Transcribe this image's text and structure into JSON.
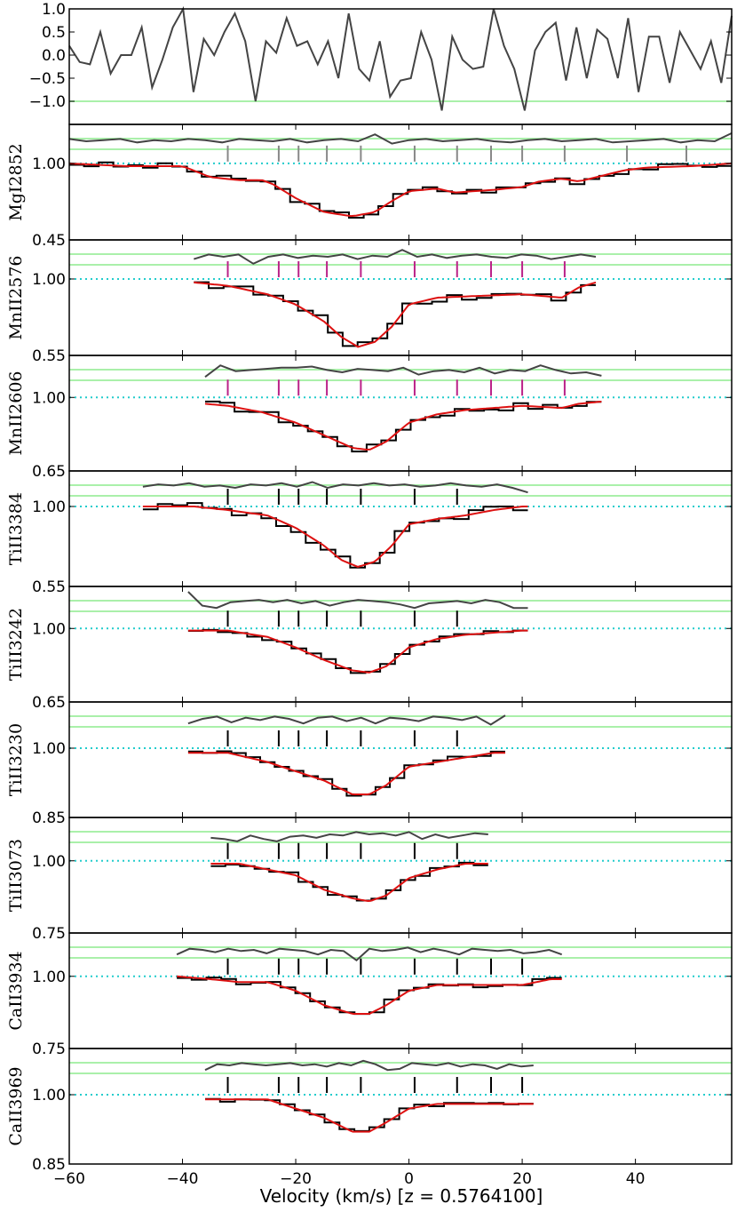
{
  "chart_data": {
    "type": "line",
    "xlabel": "Velocity (km/s) [z = 0.5764100]",
    "xlim": [
      -60,
      57
    ],
    "xticks": [
      -60,
      -40,
      -20,
      0,
      20,
      40
    ],
    "xtick_labels": [
      "−60",
      "−40",
      "−20",
      "0",
      "20",
      "40"
    ],
    "colors": {
      "data": "#000000",
      "model": "#dd1111",
      "residual": "#444444",
      "residual_band": "#aaf0aa",
      "continuum": "#22cccc",
      "tick_gray": "#888888",
      "tick_magenta": "#bb2288",
      "tick_black": "#000000"
    },
    "residual_panel": {
      "yticks": [
        1.0,
        0.5,
        0.0,
        -0.5,
        -1.0,
        -1.5
      ],
      "ytick_labels": [
        "1.0",
        "0.5",
        "0.0",
        "−0.5",
        "−1.0",
        ""
      ],
      "ylim": [
        -1.5,
        1.0
      ],
      "band": -1.0,
      "values": [
        0.2,
        -0.15,
        -0.2,
        0.5,
        -0.4,
        0.0,
        0.0,
        0.6,
        -0.7,
        -0.1,
        0.6,
        1.0,
        -0.8,
        0.35,
        0.0,
        0.5,
        0.9,
        0.3,
        -1.0,
        0.3,
        0.05,
        0.8,
        0.2,
        0.3,
        -0.2,
        0.3,
        -0.5,
        0.9,
        -0.3,
        -0.55,
        0.3,
        -0.9,
        -0.55,
        -0.5,
        0.5,
        -0.1,
        -1.2,
        0.4,
        -0.1,
        -0.3,
        -0.25,
        1.0,
        0.2,
        -0.3,
        -1.2,
        0.1,
        0.5,
        0.7,
        -0.55,
        0.6,
        -0.5,
        0.55,
        0.35,
        -0.5,
        0.8,
        -0.8,
        0.4,
        0.4,
        -0.6,
        0.5,
        0.1,
        -0.3,
        0.3,
        -0.6,
        0.85
      ]
    },
    "components": [
      -32,
      -23,
      -19.5,
      -14.5,
      -8.5,
      1,
      8.5,
      14.5,
      20,
      27.5,
      38.5,
      49
    ],
    "panels": [
      {
        "name": "MgI2852",
        "ymin_label": "0.45",
        "ylim": [
          0.45,
          1.28
        ],
        "xr": [
          -60,
          57
        ],
        "depth": 0.38,
        "ticks": "gray",
        "ncomp": 12,
        "profile": [
          [
            -60,
            1.0
          ],
          [
            -50,
            0.98
          ],
          [
            -40,
            0.98
          ],
          [
            -35,
            0.9
          ],
          [
            -30,
            0.88
          ],
          [
            -26,
            0.88
          ],
          [
            -24,
            0.85
          ],
          [
            -20,
            0.75
          ],
          [
            -15,
            0.65
          ],
          [
            -10,
            0.62
          ],
          [
            -6,
            0.65
          ],
          [
            -3,
            0.73
          ],
          [
            0,
            0.8
          ],
          [
            5,
            0.82
          ],
          [
            8,
            0.79
          ],
          [
            15,
            0.81
          ],
          [
            20,
            0.83
          ],
          [
            23,
            0.87
          ],
          [
            27,
            0.89
          ],
          [
            30,
            0.87
          ],
          [
            34,
            0.91
          ],
          [
            38,
            0.95
          ],
          [
            42,
            0.97
          ],
          [
            50,
            0.98
          ],
          [
            57,
            1.0
          ]
        ],
        "residual": [
          0.6,
          0.5,
          0.55,
          0.6,
          0.45,
          0.55,
          0.5,
          0.6,
          0.55,
          0.45,
          0.6,
          0.55,
          0.5,
          0.6,
          0.45,
          0.55,
          0.6,
          0.5,
          0.8,
          0.4,
          0.55,
          0.6,
          0.5,
          0.55,
          0.6,
          0.5,
          0.45,
          0.55,
          0.6,
          0.5,
          0.55,
          0.6,
          0.45,
          0.5,
          0.55,
          0.6,
          0.45,
          0.55,
          0.5,
          0.85
        ]
      },
      {
        "name": "MnII2576",
        "ymin_label": "0.55",
        "ylim": [
          0.55,
          1.23
        ],
        "xr": [
          -38,
          33
        ],
        "depth": 0.4,
        "ticks": "magenta",
        "ncomp": 10,
        "profile": [
          [
            -38,
            0.98
          ],
          [
            -32,
            0.96
          ],
          [
            -25,
            0.91
          ],
          [
            -20,
            0.85
          ],
          [
            -15,
            0.75
          ],
          [
            -12,
            0.66
          ],
          [
            -9,
            0.6
          ],
          [
            -6,
            0.63
          ],
          [
            -3,
            0.72
          ],
          [
            0,
            0.85
          ],
          [
            5,
            0.89
          ],
          [
            12,
            0.9
          ],
          [
            20,
            0.91
          ],
          [
            27,
            0.89
          ],
          [
            30,
            0.95
          ],
          [
            33,
            0.98
          ]
        ],
        "residual": [
          0.4,
          0.6,
          0.5,
          0.6,
          0.2,
          0.5,
          0.6,
          0.45,
          0.55,
          0.5,
          0.6,
          0.4,
          0.55,
          0.5,
          0.8,
          0.5,
          0.6,
          0.45,
          0.55,
          0.6,
          0.5,
          0.45,
          0.6,
          0.55,
          0.4,
          0.5,
          0.6,
          0.5
        ]
      },
      {
        "name": "MnII2606",
        "ymin_label": "0.65",
        "ylim": [
          0.65,
          1.2
        ],
        "xr": [
          -36,
          34
        ],
        "depth": 0.29,
        "ticks": "magenta",
        "ncomp": 10,
        "profile": [
          [
            -36,
            0.97
          ],
          [
            -32,
            0.96
          ],
          [
            -26,
            0.93
          ],
          [
            -20,
            0.88
          ],
          [
            -15,
            0.82
          ],
          [
            -10,
            0.76
          ],
          [
            -7,
            0.75
          ],
          [
            -4,
            0.79
          ],
          [
            0,
            0.88
          ],
          [
            5,
            0.92
          ],
          [
            10,
            0.94
          ],
          [
            15,
            0.95
          ],
          [
            20,
            0.96
          ],
          [
            27,
            0.95
          ],
          [
            30,
            0.97
          ],
          [
            34,
            0.98
          ]
        ],
        "residual": [
          0.3,
          0.8,
          0.55,
          0.6,
          0.65,
          0.7,
          0.7,
          0.75,
          0.6,
          0.5,
          0.65,
          0.6,
          0.55,
          0.7,
          0.4,
          0.55,
          0.6,
          0.5,
          0.7,
          0.45,
          0.6,
          0.55,
          0.8,
          0.6,
          0.45,
          0.5,
          0.35
        ]
      },
      {
        "name": "TiII3384",
        "ymin_label": "0.55",
        "ylim": [
          0.55,
          1.2
        ],
        "xr": [
          -47,
          21
        ],
        "depth": 0.42,
        "ticks": "black",
        "ncomp": 7,
        "profile": [
          [
            -47,
            1.0
          ],
          [
            -38,
            1.0
          ],
          [
            -32,
            0.98
          ],
          [
            -25,
            0.95
          ],
          [
            -20,
            0.88
          ],
          [
            -15,
            0.78
          ],
          [
            -12,
            0.7
          ],
          [
            -9,
            0.66
          ],
          [
            -6,
            0.69
          ],
          [
            -3,
            0.78
          ],
          [
            0,
            0.9
          ],
          [
            5,
            0.93
          ],
          [
            10,
            0.95
          ],
          [
            15,
            0.98
          ],
          [
            20,
            1.0
          ],
          [
            21,
            1.0
          ]
        ],
        "residual": [
          0.55,
          0.65,
          0.6,
          0.7,
          0.55,
          0.6,
          0.5,
          0.65,
          0.6,
          0.7,
          0.55,
          0.75,
          0.5,
          0.65,
          0.6,
          0.7,
          0.6,
          0.65,
          0.55,
          0.6,
          0.7,
          0.6,
          0.55,
          0.65,
          0.5,
          0.3
        ]
      },
      {
        "name": "TiII3242",
        "ymin_label": "0.65",
        "ylim": [
          0.65,
          1.2
        ],
        "xr": [
          -39,
          21
        ],
        "depth": 0.21,
        "ticks": "black",
        "ncomp": 7,
        "profile": [
          [
            -39,
            0.99
          ],
          [
            -32,
            0.99
          ],
          [
            -25,
            0.96
          ],
          [
            -20,
            0.91
          ],
          [
            -15,
            0.85
          ],
          [
            -10,
            0.8
          ],
          [
            -7,
            0.79
          ],
          [
            -4,
            0.82
          ],
          [
            0,
            0.91
          ],
          [
            5,
            0.95
          ],
          [
            10,
            0.97
          ],
          [
            15,
            0.98
          ],
          [
            20,
            0.99
          ],
          [
            21,
            0.99
          ]
        ],
        "residual": [
          1.0,
          0.4,
          0.3,
          0.55,
          0.6,
          0.65,
          0.55,
          0.65,
          0.5,
          0.6,
          0.4,
          0.55,
          0.65,
          0.6,
          0.55,
          0.45,
          0.3,
          0.5,
          0.55,
          0.6,
          0.5,
          0.65,
          0.55,
          0.3,
          0.3
        ]
      },
      {
        "name": "TiII3230",
        "ymin_label": "0.85",
        "ylim": [
          0.85,
          1.1
        ],
        "xr": [
          -39,
          17
        ],
        "depth": 0.1,
        "ticks": "black",
        "ncomp": 7,
        "profile": [
          [
            -39,
            0.99
          ],
          [
            -32,
            0.99
          ],
          [
            -25,
            0.97
          ],
          [
            -20,
            0.95
          ],
          [
            -15,
            0.93
          ],
          [
            -10,
            0.9
          ],
          [
            -7,
            0.9
          ],
          [
            -4,
            0.92
          ],
          [
            0,
            0.96
          ],
          [
            5,
            0.97
          ],
          [
            10,
            0.98
          ],
          [
            15,
            0.99
          ],
          [
            17,
            0.99
          ]
        ],
        "residual": [
          0.3,
          0.5,
          0.6,
          0.35,
          0.55,
          0.45,
          0.6,
          0.5,
          0.3,
          0.55,
          0.6,
          0.4,
          0.55,
          0.3,
          0.55,
          0.5,
          0.4,
          0.6,
          0.55,
          0.45,
          0.6,
          0.25,
          0.65
        ]
      },
      {
        "name": "TiII3073",
        "ymin_label": "0.75",
        "ylim": [
          0.75,
          1.15
        ],
        "xr": [
          -35,
          14
        ],
        "depth": 0.14,
        "ticks": "black",
        "ncomp": 7,
        "profile": [
          [
            -35,
            0.99
          ],
          [
            -30,
            0.99
          ],
          [
            -25,
            0.97
          ],
          [
            -20,
            0.95
          ],
          [
            -15,
            0.9
          ],
          [
            -10,
            0.87
          ],
          [
            -7,
            0.86
          ],
          [
            -4,
            0.88
          ],
          [
            0,
            0.94
          ],
          [
            5,
            0.97
          ],
          [
            10,
            0.99
          ],
          [
            14,
            0.99
          ]
        ],
        "residual": [
          0.35,
          0.3,
          0.2,
          0.45,
          0.3,
          0.2,
          0.4,
          0.45,
          0.35,
          0.5,
          0.45,
          0.6,
          0.5,
          0.55,
          0.45,
          0.6,
          0.3,
          0.5,
          0.35,
          0.45,
          0.55,
          0.5
        ]
      },
      {
        "name": "CaII3934",
        "ymin_label": "0.75",
        "ylim": [
          0.75,
          1.15
        ],
        "xr": [
          -41,
          27
        ],
        "depth": 0.14,
        "ticks": "black",
        "ncomp": 9,
        "profile": [
          [
            -41,
            1.0
          ],
          [
            -35,
            0.99
          ],
          [
            -30,
            0.98
          ],
          [
            -25,
            0.98
          ],
          [
            -20,
            0.95
          ],
          [
            -15,
            0.9
          ],
          [
            -10,
            0.87
          ],
          [
            -7,
            0.87
          ],
          [
            -4,
            0.9
          ],
          [
            0,
            0.95
          ],
          [
            5,
            0.97
          ],
          [
            10,
            0.97
          ],
          [
            15,
            0.97
          ],
          [
            20,
            0.97
          ],
          [
            25,
            0.99
          ],
          [
            27,
            0.99
          ]
        ],
        "residual": [
          0.3,
          0.55,
          0.5,
          0.4,
          0.55,
          0.45,
          0.5,
          0.35,
          0.55,
          0.5,
          0.45,
          0.3,
          0.5,
          0.45,
          0.05,
          0.55,
          0.45,
          0.5,
          0.6,
          0.4,
          0.55,
          0.45,
          0.3,
          0.55,
          0.5,
          0.45,
          0.5,
          0.35,
          0.4,
          0.5,
          0.3
        ]
      },
      {
        "name": "CaII3969",
        "ymin_label": "0.85",
        "ylim": [
          0.85,
          1.1
        ],
        "xr": [
          -36,
          22
        ],
        "depth": 0.09,
        "ticks": "black",
        "ncomp": 9,
        "profile": [
          [
            -36,
            0.99
          ],
          [
            -30,
            0.99
          ],
          [
            -25,
            0.99
          ],
          [
            -20,
            0.97
          ],
          [
            -15,
            0.95
          ],
          [
            -10,
            0.92
          ],
          [
            -7,
            0.92
          ],
          [
            -4,
            0.94
          ],
          [
            0,
            0.97
          ],
          [
            5,
            0.98
          ],
          [
            10,
            0.98
          ],
          [
            15,
            0.98
          ],
          [
            20,
            0.98
          ],
          [
            22,
            0.98
          ]
        ],
        "residual": [
          0.3,
          0.55,
          0.5,
          0.6,
          0.55,
          0.5,
          0.55,
          0.6,
          0.5,
          0.55,
          0.45,
          0.6,
          0.5,
          0.7,
          0.55,
          0.3,
          0.35,
          0.6,
          0.55,
          0.5,
          0.6,
          0.45,
          0.55,
          0.5,
          0.35,
          0.55,
          0.45,
          0.5
        ]
      }
    ]
  }
}
